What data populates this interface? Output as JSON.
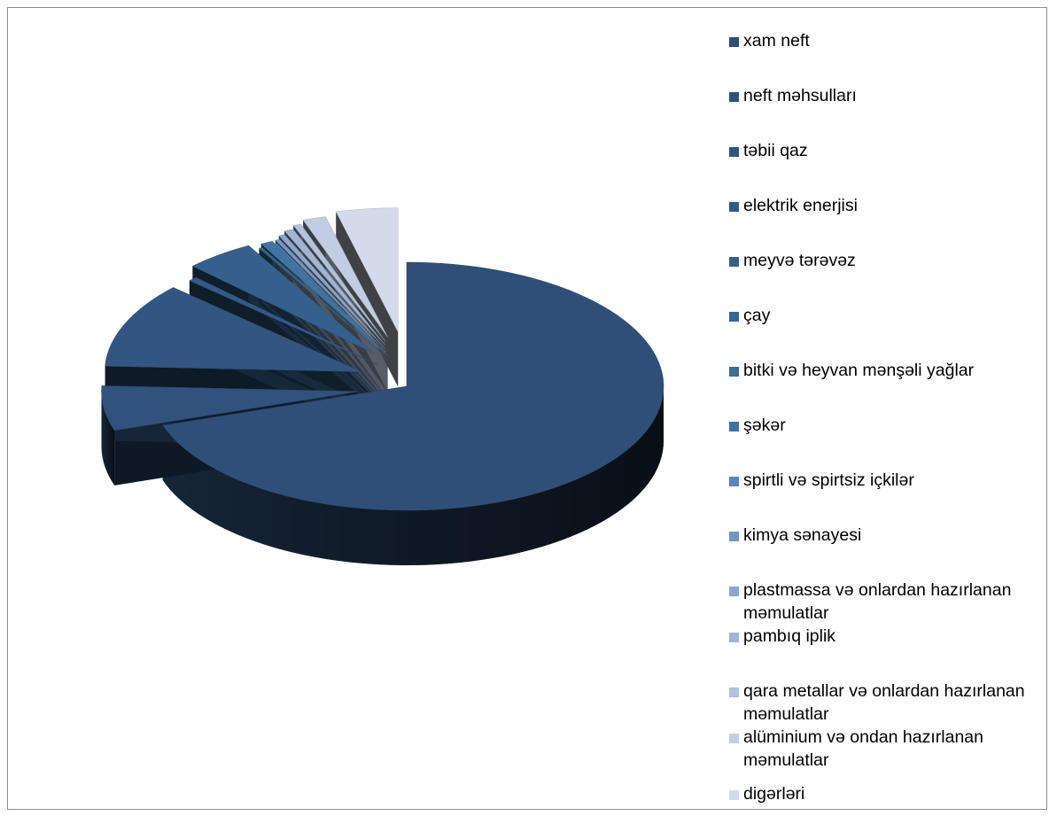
{
  "chart_data": {
    "type": "pie",
    "title": "",
    "categories": [
      "xam neft",
      "neft məhsulları",
      "təbii qaz",
      "elektrik enerjisi",
      "meyvə tərəvəz",
      "çay",
      "bitki və heyvan mənşəli yağlar",
      "şəkər",
      "spirtli və spirtsiz içkilər",
      "kimya sənayesi",
      "plastmassa və onlardan hazırlanan məmulatlar",
      "pambıq iplik",
      "qara metallar və onlardan hazırlanan məmulatlar",
      "alüminium və ondan hazırlanan məmulatlar",
      "digərləri"
    ],
    "values": [
      72.0,
      6.0,
      11.5,
      0.6,
      4.5,
      0.1,
      0.1,
      0.8,
      0.1,
      0.3,
      0.4,
      0.6,
      0.5,
      1.5,
      4.0
    ],
    "colors": [
      "#2F4F78",
      "#30527C",
      "#325681",
      "#335A86",
      "#35608D",
      "#386694",
      "#3B6C9A",
      "#3F73A3",
      "#5A87B8",
      "#7395C2",
      "#8DA6CC",
      "#A1B4D4",
      "#B3C2DC",
      "#C2CDE3",
      "#D3DAEA"
    ],
    "legend_position": "right",
    "exploded": true,
    "three_d": true
  }
}
